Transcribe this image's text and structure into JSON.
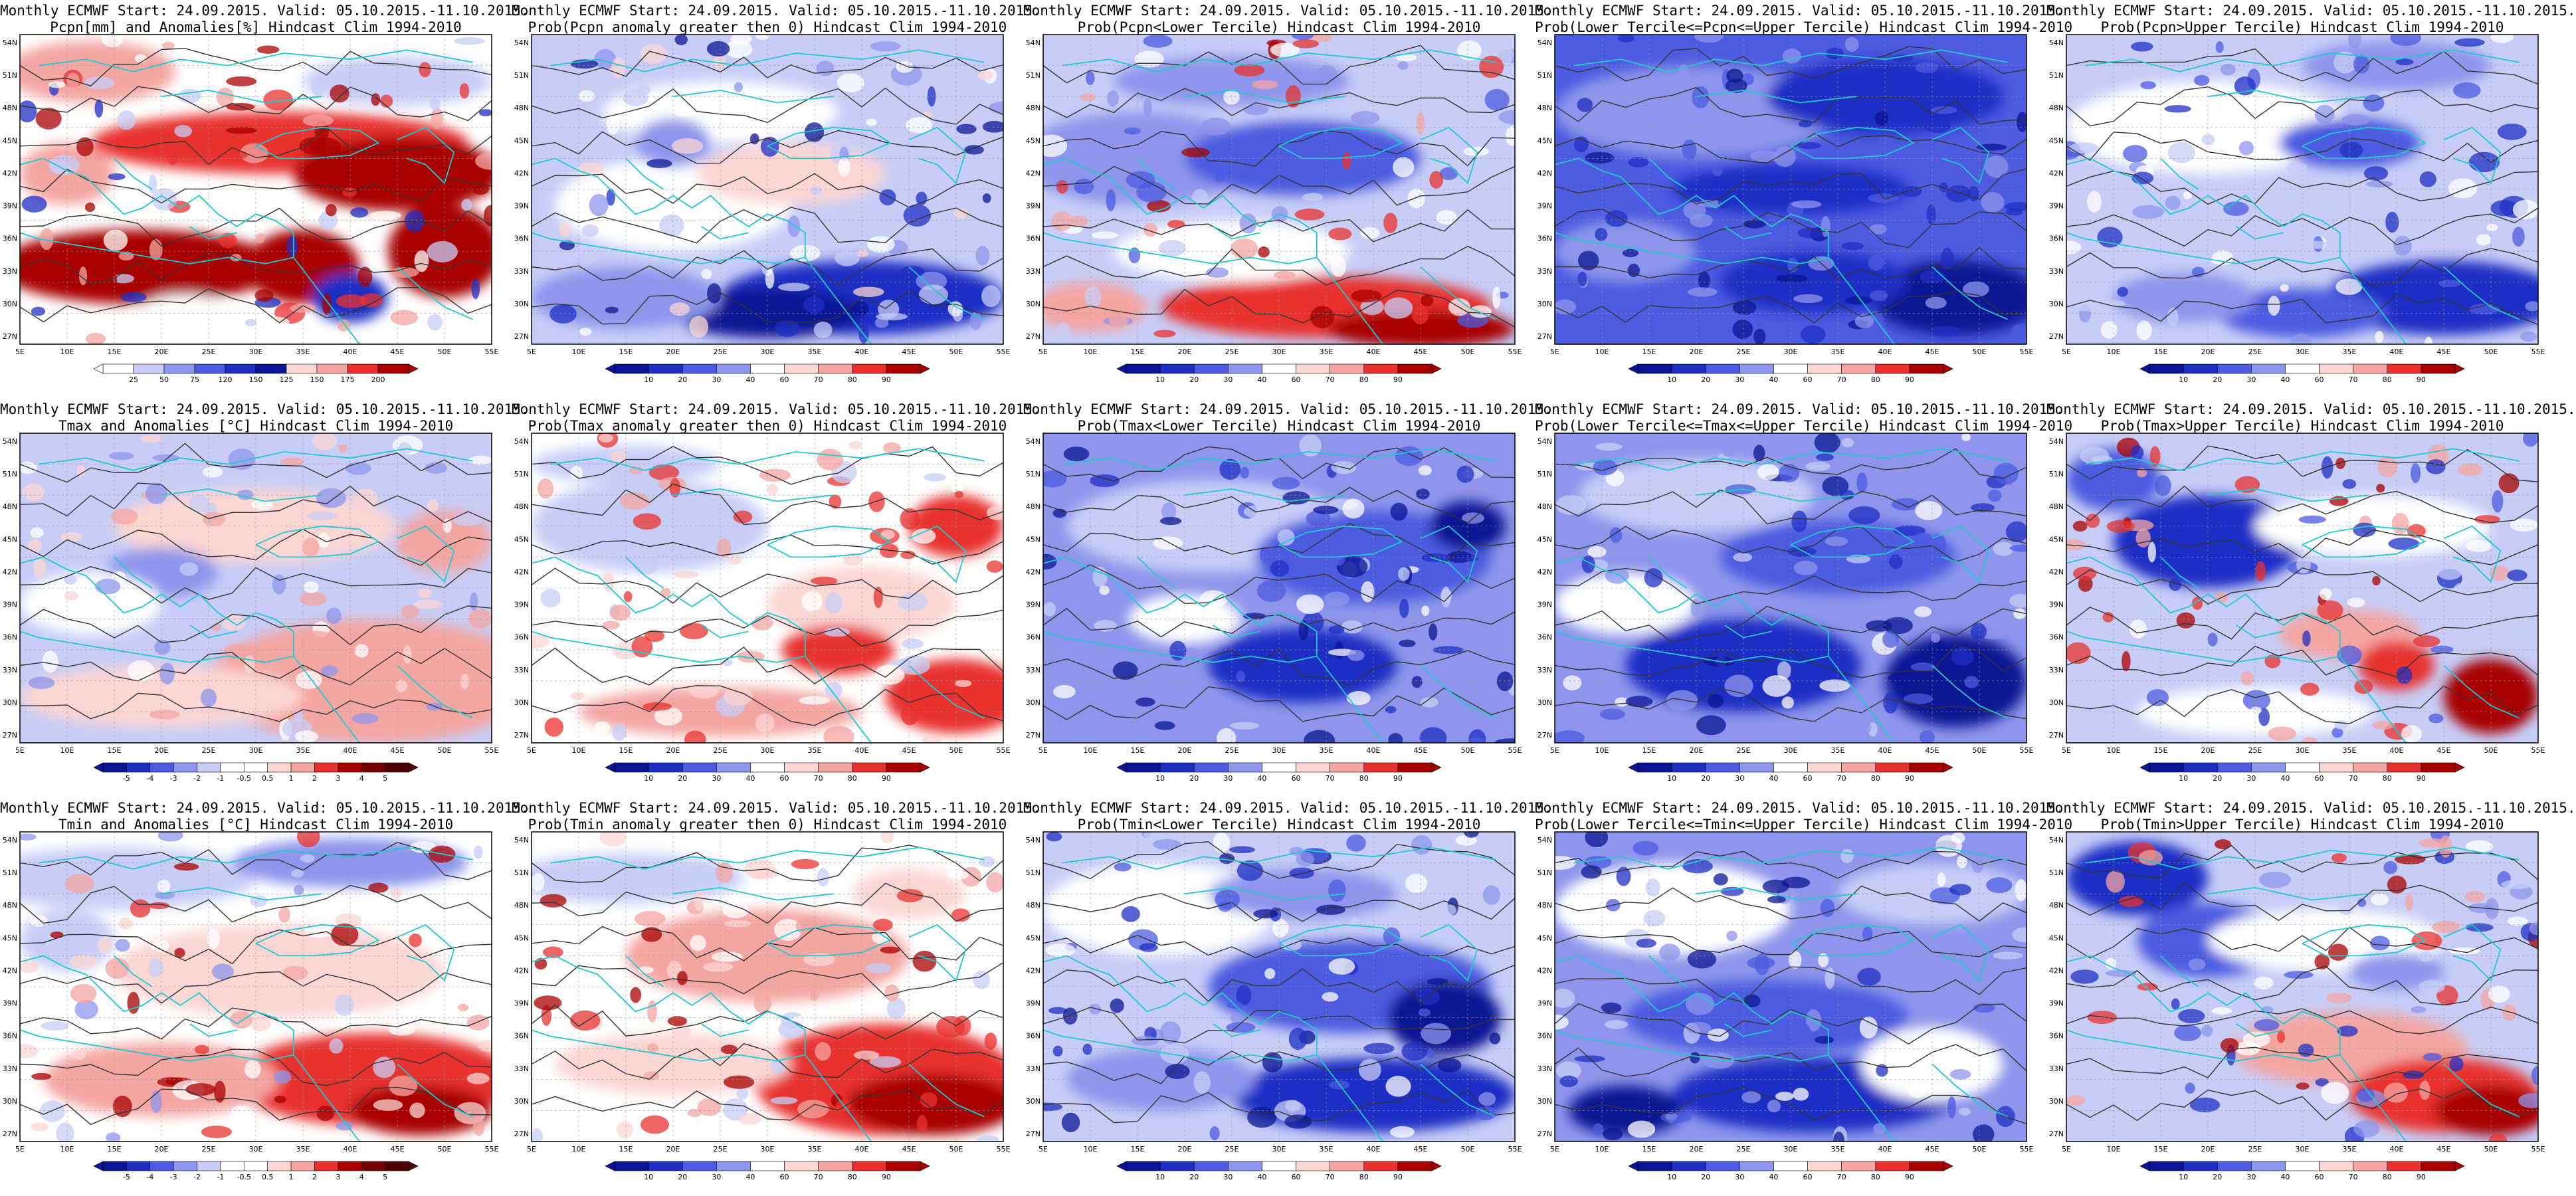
{
  "header_template": {
    "line1": "Monthly ECMWF Start: 24.09.2015. Valid: 05.10.2015.-11.10.2015."
  },
  "lat_labels": [
    "54N",
    "51N",
    "48N",
    "45N",
    "42N",
    "39N",
    "36N",
    "33N",
    "30N",
    "27N"
  ],
  "lon_labels": [
    "5E",
    "10E",
    "15E",
    "20E",
    "25E",
    "30E",
    "35E",
    "40E",
    "45E",
    "50E",
    "55E"
  ],
  "scales": {
    "pcpn_anom": [
      "25",
      "50",
      "75",
      "120",
      "150",
      "125",
      "150",
      "175",
      "200"
    ],
    "temp_anom": [
      "-5",
      "-4",
      "-3",
      "-2",
      "-1",
      "-0.5",
      "0.5",
      "1",
      "2",
      "3",
      "4",
      "5"
    ],
    "prob": [
      "10",
      "20",
      "30",
      "40",
      "60",
      "70",
      "80",
      "90"
    ]
  },
  "colors": {
    "deep_red": "#a80000",
    "red": "#e8312f",
    "light_red": "#f4a6a2",
    "pale_red": "#fbd6d3",
    "white": "#ffffff",
    "pale_blue": "#c7cdf7",
    "light_blue": "#8d96ec",
    "blue": "#4c5be0",
    "deep_blue": "#1f2fc4",
    "navy": "#0b1593",
    "coast": "#22c8d0",
    "contour": "#333333"
  },
  "panels": [
    {
      "title": [
        "Monthly ECMWF Start: 24.09.2015. Valid: 05.10.2015.-11.10.2015.",
        "Pcpn[mm] and Anomalies[%] Hindcast Clim 1994-2010"
      ],
      "scale": "pcpn_anom",
      "pattern": "pcpn_anom"
    },
    {
      "title": [
        "Monthly ECMWF Start: 24.09.2015. Valid: 05.10.2015.-11.10.2015.",
        "Prob(Pcpn anomaly greater then 0) Hindcast Clim 1994-2010"
      ],
      "scale": "prob",
      "pattern": "pcpn_pos"
    },
    {
      "title": [
        "Monthly ECMWF Start: 24.09.2015. Valid: 05.10.2015.-11.10.2015.",
        "Prob(Pcpn<Lower Tercile) Hindcast Clim 1994-2010"
      ],
      "scale": "prob",
      "pattern": "pcpn_low"
    },
    {
      "title": [
        "Monthly ECMWF Start: 24.09.2015. Valid: 05.10.2015.-11.10.2015.",
        "Prob(Lower Tercile<=Pcpn<=Upper Tercile) Hindcast Clim 1994-2010"
      ],
      "scale": "prob",
      "pattern": "pcpn_mid"
    },
    {
      "title": [
        "Monthly ECMWF Start: 24.09.2015. Valid: 05.10.2015.-11.10.2015.",
        "Prob(Pcpn>Upper Tercile) Hindcast Clim 1994-2010"
      ],
      "scale": "prob",
      "pattern": "pcpn_up"
    },
    {
      "title": [
        "Monthly ECMWF Start: 24.09.2015. Valid: 05.10.2015.-11.10.2015.",
        "Tmax and Anomalies [°C] Hindcast Clim 1994-2010"
      ],
      "scale": "temp_anom",
      "pattern": "tmax_anom"
    },
    {
      "title": [
        "Monthly ECMWF Start: 24.09.2015. Valid: 05.10.2015.-11.10.2015.",
        "Prob(Tmax anomaly greater then 0) Hindcast Clim 1994-2010"
      ],
      "scale": "prob",
      "pattern": "tmax_pos"
    },
    {
      "title": [
        "Monthly ECMWF Start: 24.09.2015. Valid: 05.10.2015.-11.10.2015.",
        "Prob(Tmax<Lower Tercile) Hindcast Clim 1994-2010"
      ],
      "scale": "prob",
      "pattern": "tmax_low"
    },
    {
      "title": [
        "Monthly ECMWF Start: 24.09.2015. Valid: 05.10.2015.-11.10.2015.",
        "Prob(Lower Tercile<=Tmax<=Upper Tercile) Hindcast Clim 1994-2010"
      ],
      "scale": "prob",
      "pattern": "tmax_mid"
    },
    {
      "title": [
        "Monthly ECMWF Start: 24.09.2015. Valid: 05.10.2015.-11.10.2015.",
        "Prob(Tmax>Upper Tercile) Hindcast Clim 1994-2010"
      ],
      "scale": "prob",
      "pattern": "tmax_up"
    },
    {
      "title": [
        "Monthly ECMWF Start: 24.09.2015. Valid: 05.10.2015.-11.10.2015.",
        "Tmin and Anomalies [°C] Hindcast Clim 1994-2010"
      ],
      "scale": "temp_anom",
      "pattern": "tmin_anom"
    },
    {
      "title": [
        "Monthly ECMWF Start: 24.09.2015. Valid: 05.10.2015.-11.10.2015.",
        "Prob(Tmin anomaly greater then 0) Hindcast Clim 1994-2010"
      ],
      "scale": "prob",
      "pattern": "tmin_pos"
    },
    {
      "title": [
        "Monthly ECMWF Start: 24.09.2015. Valid: 05.10.2015.-11.10.2015.",
        "Prob(Tmin<Lower Tercile) Hindcast Clim 1994-2010"
      ],
      "scale": "prob",
      "pattern": "tmin_low"
    },
    {
      "title": [
        "Monthly ECMWF Start: 24.09.2015. Valid: 05.10.2015.-11.10.2015.",
        "Prob(Lower Tercile<=Tmin<=Upper Tercile) Hindcast Clim 1994-2010"
      ],
      "scale": "prob",
      "pattern": "tmin_mid"
    },
    {
      "title": [
        "Monthly ECMWF Start: 24.09.2015. Valid: 05.10.2015.-11.10.2015.",
        "Prob(Tmin>Upper Tercile) Hindcast Clim 1994-2010"
      ],
      "scale": "prob",
      "pattern": "tmin_up"
    }
  ]
}
